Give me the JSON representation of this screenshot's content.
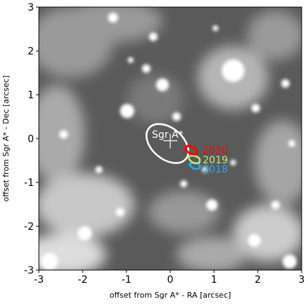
{
  "chart_data": {
    "type": "image",
    "xlabel": "offset from Sgr A* - RA  [arcsec]",
    "ylabel": "offset from Sgr A* - Dec [arcsec]",
    "xlim": [
      -3,
      3
    ],
    "ylim": [
      -3,
      3
    ],
    "xticks": [
      -3,
      -2,
      -1,
      0,
      1,
      2,
      3
    ],
    "yticks": [
      -3,
      -2,
      -1,
      0,
      1,
      2,
      3
    ],
    "annotations": [
      {
        "text": "Sgr A*",
        "color": "#ffffff"
      },
      {
        "text": "2020",
        "color": "#ff0000"
      },
      {
        "text": "2019",
        "color": "#c8e678"
      },
      {
        "text": "2018",
        "color": "#22aaee"
      }
    ]
  }
}
